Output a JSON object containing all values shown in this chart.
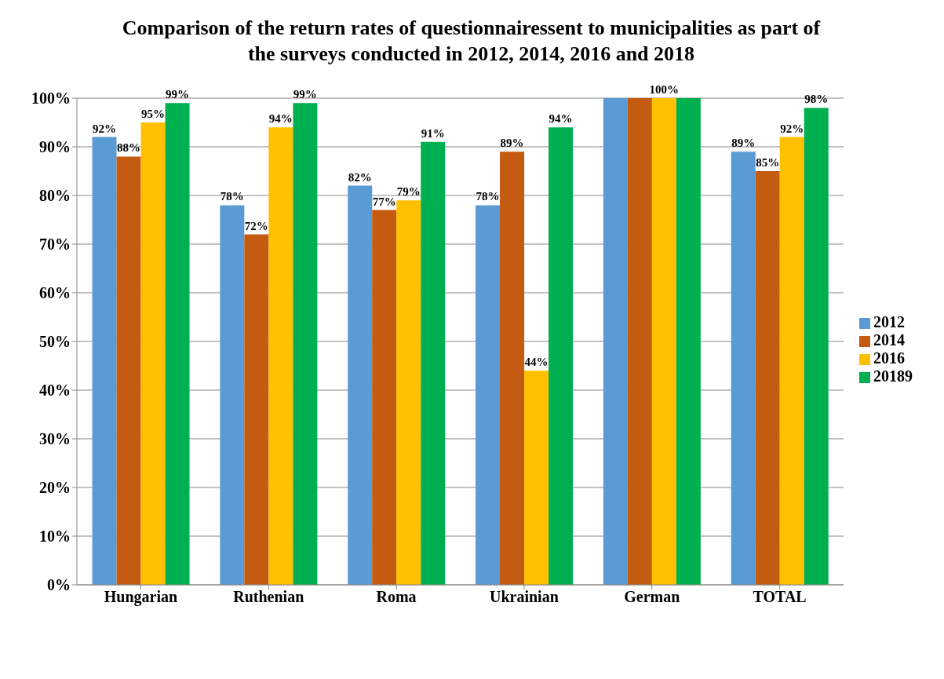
{
  "chart_data": {
    "type": "bar",
    "title": "Comparison of the return rates of questionnairessent to municipalities as part of the surveys conducted in 2012, 2014, 2016 and 2018",
    "categories": [
      "Hungarian",
      "Ruthenian",
      "Roma",
      "Ukrainian",
      "German",
      "TOTAL"
    ],
    "series": [
      {
        "name": "2012",
        "color": "#5b9bd5",
        "values": [
          92,
          78,
          82,
          78,
          100,
          89
        ],
        "value_labels": [
          "92%",
          "78%",
          "82%",
          "78%",
          null,
          "89%"
        ]
      },
      {
        "name": "2014",
        "color": "#c55a11",
        "values": [
          88,
          72,
          77,
          89,
          100,
          85
        ],
        "value_labels": [
          "88%",
          "72%",
          "77%",
          "89%",
          null,
          "85%"
        ]
      },
      {
        "name": "2016",
        "color": "#ffc000",
        "values": [
          95,
          94,
          79,
          44,
          100,
          92
        ],
        "value_labels": [
          "95%",
          "94%",
          "79%",
          "44%",
          "100%",
          "92%"
        ]
      },
      {
        "name": "20189",
        "color": "#00b050",
        "values": [
          99,
          99,
          91,
          94,
          100,
          98
        ],
        "value_labels": [
          "99%",
          "99%",
          "91%",
          "94%",
          null,
          "98%"
        ]
      }
    ],
    "ylim": [
      0,
      100
    ],
    "yticks": [
      {
        "value": 0,
        "label": "0%"
      },
      {
        "value": 10,
        "label": "10%"
      },
      {
        "value": 20,
        "label": "20%"
      },
      {
        "value": 30,
        "label": "30%"
      },
      {
        "value": 40,
        "label": "40%"
      },
      {
        "value": 50,
        "label": "50%"
      },
      {
        "value": 60,
        "label": "60%"
      },
      {
        "value": 70,
        "label": "70%"
      },
      {
        "value": 80,
        "label": "80%"
      },
      {
        "value": 90,
        "label": "90%"
      },
      {
        "value": 100,
        "label": "100%"
      }
    ],
    "grid": "y",
    "legend": "right"
  }
}
